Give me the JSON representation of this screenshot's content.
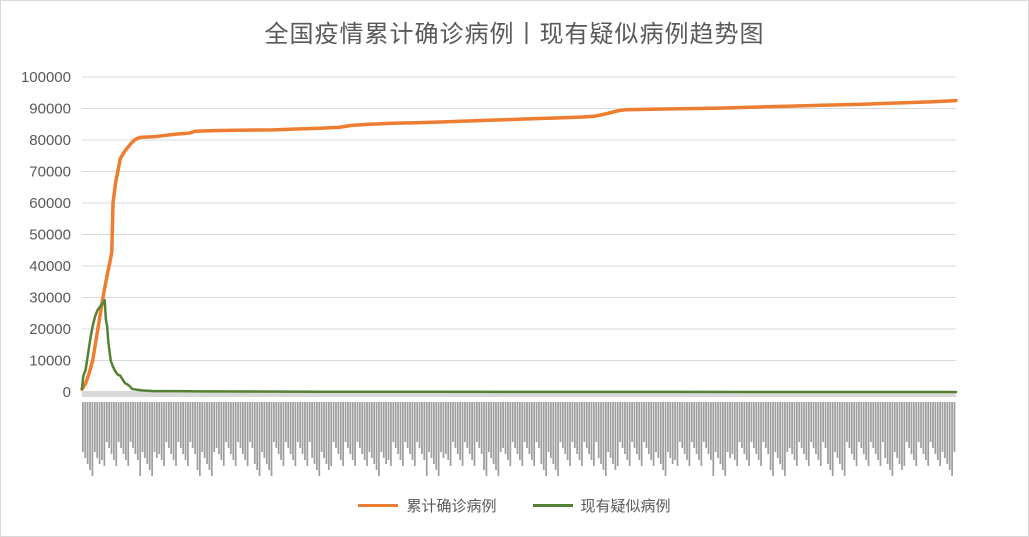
{
  "chart_data": {
    "type": "line",
    "title": "全国疫情累计确诊病例丨现有疑似病例趋势图",
    "xlabel": "",
    "ylabel": "",
    "ylim": [
      0,
      100000
    ],
    "yticks": [
      "0",
      "10000",
      "20000",
      "30000",
      "40000",
      "50000",
      "60000",
      "70000",
      "80000",
      "90000",
      "100000"
    ],
    "grid": true,
    "legend_position": "bottom",
    "x_count": 366,
    "series": [
      {
        "name": "累计确诊病例",
        "color": "#ed7d31",
        "points": [
          [
            0,
            900
          ],
          [
            3,
            2700
          ],
          [
            6,
            6000
          ],
          [
            9,
            10000
          ],
          [
            12,
            17000
          ],
          [
            15,
            24000
          ],
          [
            18,
            31000
          ],
          [
            21,
            37000
          ],
          [
            24,
            42500
          ],
          [
            25,
            44600
          ],
          [
            26,
            60000
          ],
          [
            28,
            66000
          ],
          [
            30,
            70000
          ],
          [
            32,
            74000
          ],
          [
            35,
            76000
          ],
          [
            38,
            77500
          ],
          [
            41,
            78900
          ],
          [
            44,
            80000
          ],
          [
            47,
            80600
          ],
          [
            50,
            80900
          ],
          [
            60,
            81000
          ],
          [
            70,
            81500
          ],
          [
            80,
            81900
          ],
          [
            90,
            82200
          ],
          [
            95,
            82800
          ],
          [
            110,
            83000
          ],
          [
            130,
            83100
          ],
          [
            160,
            83200
          ],
          [
            180,
            83500
          ],
          [
            200,
            83700
          ],
          [
            215,
            84000
          ],
          [
            225,
            84600
          ],
          [
            240,
            85000
          ],
          [
            260,
            85300
          ],
          [
            280,
            85500
          ],
          [
            300,
            85700
          ],
          [
            320,
            86000
          ],
          [
            340,
            86300
          ],
          [
            360,
            86500
          ],
          [
            380,
            86800
          ],
          [
            400,
            87000
          ],
          [
            420,
            87300
          ],
          [
            430,
            87600
          ],
          [
            440,
            88400
          ],
          [
            448,
            89200
          ],
          [
            455,
            89600
          ],
          [
            470,
            89700
          ],
          [
            500,
            89900
          ],
          [
            530,
            90100
          ],
          [
            560,
            90400
          ],
          [
            590,
            90700
          ],
          [
            620,
            91000
          ],
          [
            650,
            91300
          ],
          [
            680,
            91700
          ],
          [
            710,
            92100
          ],
          [
            732,
            92500
          ]
        ]
      },
      {
        "name": "现有疑似病例",
        "color": "#548235",
        "points": [
          [
            0,
            1000
          ],
          [
            1,
            5000
          ],
          [
            3,
            7000
          ],
          [
            5,
            12000
          ],
          [
            7,
            17000
          ],
          [
            9,
            21000
          ],
          [
            11,
            24000
          ],
          [
            13,
            26000
          ],
          [
            15,
            27000
          ],
          [
            17,
            28000
          ],
          [
            19,
            29100
          ],
          [
            20,
            23000
          ],
          [
            21,
            21000
          ],
          [
            22,
            16000
          ],
          [
            24,
            10000
          ],
          [
            26,
            8000
          ],
          [
            28,
            6500
          ],
          [
            30,
            5500
          ],
          [
            32,
            5200
          ],
          [
            34,
            4000
          ],
          [
            36,
            2800
          ],
          [
            38,
            2400
          ],
          [
            40,
            1800
          ],
          [
            42,
            1000
          ],
          [
            46,
            700
          ],
          [
            50,
            500
          ],
          [
            60,
            300
          ],
          [
            80,
            300
          ],
          [
            100,
            200
          ],
          [
            140,
            150
          ],
          [
            200,
            100
          ],
          [
            300,
            50
          ],
          [
            400,
            30
          ],
          [
            500,
            20
          ],
          [
            600,
            10
          ],
          [
            732,
            10
          ]
        ]
      }
    ]
  }
}
